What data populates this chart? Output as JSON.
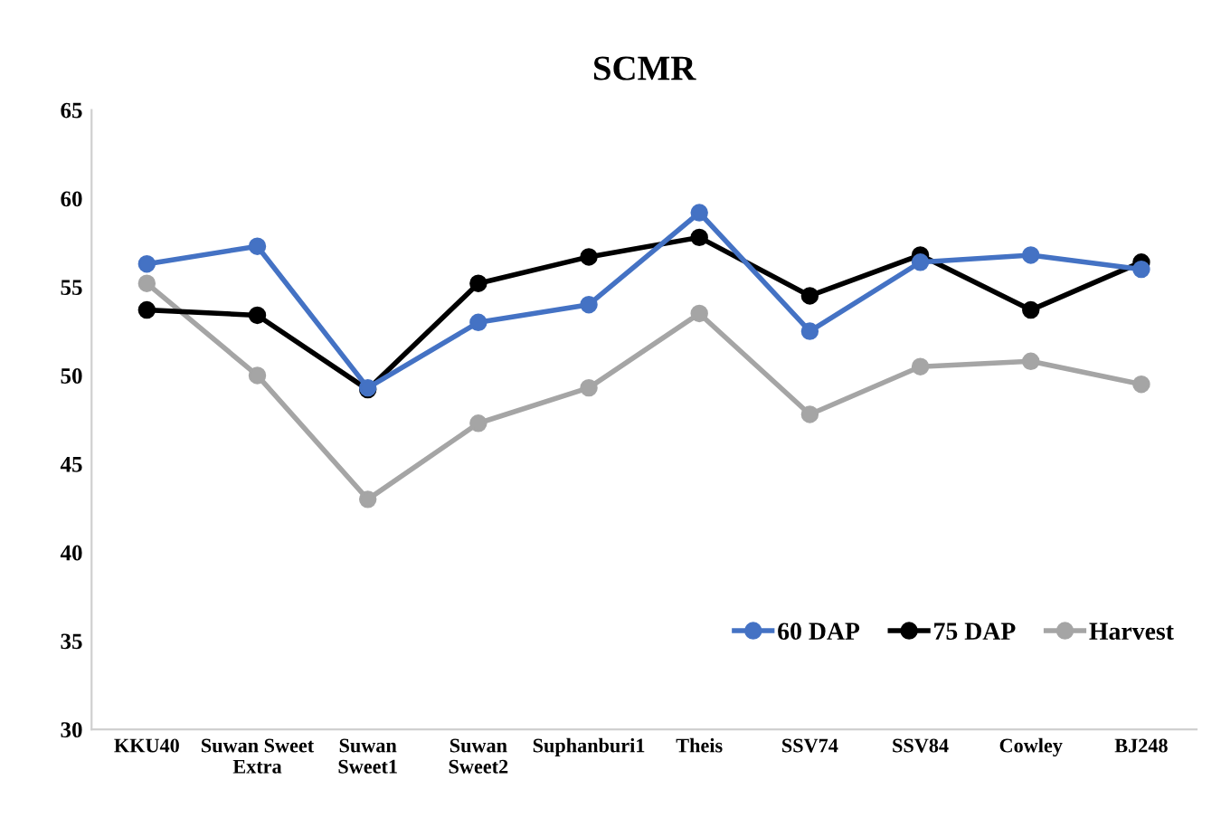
{
  "chart_data": {
    "type": "line",
    "title": "SCMR",
    "categories": [
      "KKU40",
      "Suwan Sweet\nExtra",
      "Suwan\nSweet1",
      "Suwan\nSweet2",
      "Suphanburi1",
      "Theis",
      "SSV74",
      "SSV84",
      "Cowley",
      "BJ248"
    ],
    "series": [
      {
        "name": "60 DAP",
        "color": "#4472c4",
        "values": [
          56.3,
          57.3,
          49.3,
          53.0,
          54.0,
          59.2,
          52.5,
          56.4,
          56.8,
          56.0
        ]
      },
      {
        "name": "75 DAP",
        "color": "#000000",
        "values": [
          53.7,
          53.4,
          49.2,
          55.2,
          56.7,
          57.8,
          54.5,
          56.8,
          53.7,
          56.4
        ]
      },
      {
        "name": "Harvest",
        "color": "#a5a5a5",
        "values": [
          55.2,
          50.0,
          43.0,
          47.3,
          49.3,
          53.5,
          47.8,
          50.5,
          50.8,
          49.5
        ]
      }
    ],
    "ylim": [
      30,
      65
    ],
    "yticks": [
      30,
      35,
      40,
      45,
      50,
      55,
      60,
      65
    ],
    "grid": false,
    "legend": "bottom right",
    "marker": "circle",
    "line_style": "solid"
  }
}
